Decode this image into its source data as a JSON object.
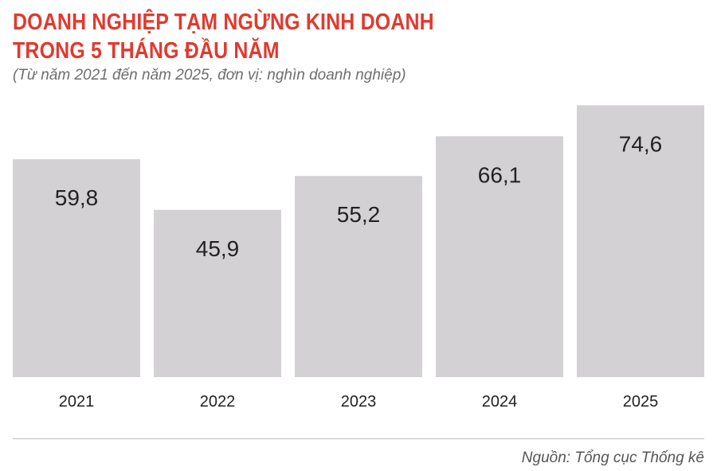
{
  "title_line1": "DOANH NGHIỆP TẠM NGỪNG KINH DOANH",
  "title_line2": "TRONG 5 THÁNG ĐẦU NĂM",
  "subtitle": "(Từ năm 2021 đến năm 2025, đơn vị: nghìn doanh nghiệp)",
  "source": "Nguồn: Tổng cục Thống kê",
  "colors": {
    "title": "#e03a2f",
    "bar": "#d3d1d4"
  },
  "chart_data": {
    "type": "bar",
    "title": "DOANH NGHIỆP TẠM NGỪNG KINH DOANH TRONG 5 THÁNG ĐẦU NĂM",
    "subtitle": "(Từ năm 2021 đến năm 2025, đơn vị: nghìn doanh nghiệp)",
    "categories": [
      "2021",
      "2022",
      "2023",
      "2024",
      "2025"
    ],
    "values": [
      59.8,
      45.9,
      55.2,
      66.1,
      74.6
    ],
    "value_labels": [
      "59,8",
      "45,9",
      "55,2",
      "66,1",
      "74,6"
    ],
    "xlabel": "",
    "ylabel": "",
    "ylim": [
      0,
      80
    ],
    "grid": false,
    "legend": "none"
  }
}
